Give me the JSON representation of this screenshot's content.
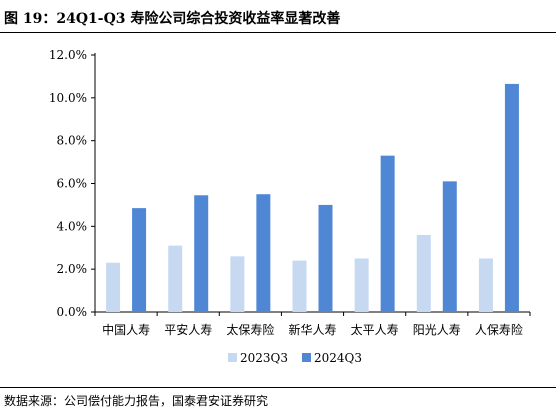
{
  "figure": {
    "title": "图 19：24Q1-Q3 寿险公司综合投资收益率显著改善",
    "source": "数据来源：公司偿付能力报告，国泰君安证券研究"
  },
  "chart_data": {
    "type": "bar",
    "categories": [
      "中国人寿",
      "平安人寿",
      "太保寿险",
      "新华人寿",
      "太平人寿",
      "阳光人寿",
      "人保寿险"
    ],
    "series": [
      {
        "name": "2023Q3",
        "values": [
          2.3,
          3.1,
          2.6,
          2.4,
          2.5,
          3.6,
          2.5
        ],
        "color": "#c6d9f1"
      },
      {
        "name": "2024Q3",
        "values": [
          4.85,
          5.45,
          5.5,
          5.0,
          7.3,
          6.1,
          10.65
        ],
        "color": "#4f87d4"
      }
    ],
    "yticks": [
      "0.0%",
      "2.0%",
      "4.0%",
      "6.0%",
      "8.0%",
      "10.0%",
      "12.0%"
    ],
    "ylim": [
      0,
      12
    ],
    "grid": false,
    "legend_position": "bottom",
    "title": "",
    "xlabel": "",
    "ylabel": ""
  }
}
